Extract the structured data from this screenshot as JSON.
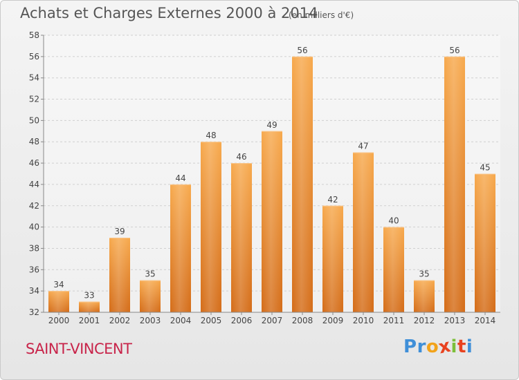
{
  "header": {
    "title": "Achats et Charges Externes 2000 à 2014",
    "unit": "(en milliers d'€)"
  },
  "footer": {
    "place": "SAINT-VINCENT",
    "logo": {
      "letters": [
        "P",
        "r",
        "o",
        "x",
        "i",
        "t",
        "i"
      ],
      "colors": [
        "#3f8fd8",
        "#3f8fd8",
        "#f2a31b",
        "#e8421f",
        "#7cbf3a",
        "#e8421f",
        "#3f8fd8"
      ]
    }
  },
  "chart_data": {
    "type": "bar",
    "title": "Achats et Charges Externes 2000 à 2014",
    "subtitle": "(en milliers d'€)",
    "categories": [
      "2000",
      "2001",
      "2002",
      "2003",
      "2004",
      "2005",
      "2006",
      "2007",
      "2008",
      "2009",
      "2010",
      "2011",
      "2012",
      "2013",
      "2014"
    ],
    "values": [
      34,
      33,
      39,
      35,
      44,
      48,
      46,
      49,
      56,
      42,
      47,
      40,
      35,
      56,
      45
    ],
    "ylim": [
      32,
      58
    ],
    "yticks": [
      32,
      34,
      36,
      38,
      40,
      42,
      44,
      46,
      48,
      50,
      52,
      54,
      56,
      58
    ],
    "grid": true,
    "bar_color": "#f0912f",
    "bar_color_dark": "#d8701a",
    "data_labels": true
  }
}
